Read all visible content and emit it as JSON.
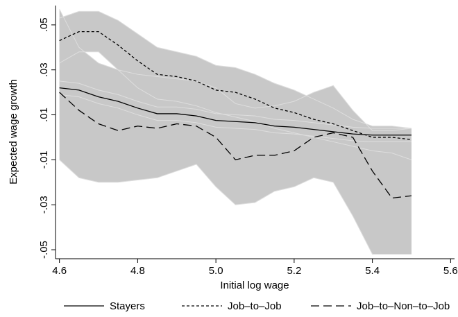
{
  "chart_data": {
    "type": "line",
    "x_label": "Initial log wage",
    "y_label": "Expected wage growth",
    "xlim": [
      4.59,
      5.61
    ],
    "ylim": [
      -0.054,
      0.0586
    ],
    "xticks": [
      4.6,
      4.8,
      {
        "value": 5,
        "label": "5.0"
      },
      5.2,
      5.4,
      5.6
    ],
    "yticks": [
      {
        "value": 0.05,
        "label": ".05"
      },
      {
        "value": 0.03,
        "label": ".03"
      },
      {
        "value": 0.01,
        "label": ".01"
      },
      {
        "value": -0.01,
        "label": "-.01"
      },
      {
        "value": -0.03,
        "label": "-.03"
      },
      {
        "value": -0.05,
        "label": "-.05"
      }
    ],
    "band_color": "#c8c8c8",
    "x": [
      4.6,
      4.65,
      4.7,
      4.75,
      4.8,
      4.85,
      4.9,
      4.95,
      5.0,
      5.05,
      5.1,
      5.15,
      5.2,
      5.25,
      5.3,
      5.35,
      5.4,
      5.45,
      5.5
    ],
    "series": [
      {
        "name": "Stayers",
        "color": "#000000",
        "dash": "solid",
        "values": [
          0.022,
          0.021,
          0.018,
          0.016,
          0.013,
          0.0105,
          0.0105,
          0.0095,
          0.0075,
          0.007,
          0.0065,
          0.005,
          0.0045,
          0.0035,
          0.0025,
          0.0015,
          0.001,
          0.001,
          0.001
        ],
        "upper": [
          0.025,
          0.024,
          0.021,
          0.019,
          0.016,
          0.0135,
          0.0135,
          0.0125,
          0.0105,
          0.01,
          0.0095,
          0.008,
          0.0075,
          0.0065,
          0.0055,
          0.0045,
          0.004,
          0.004,
          0.004
        ],
        "lower": [
          0.019,
          0.018,
          0.015,
          0.013,
          0.01,
          0.0075,
          0.0075,
          0.0065,
          0.0045,
          0.004,
          0.0035,
          0.002,
          0.0015,
          0.0005,
          -0.0005,
          -0.0015,
          -0.002,
          -0.002,
          -0.002
        ]
      },
      {
        "name": "Job–to–Job",
        "color": "#000000",
        "dash": "short",
        "values": [
          0.043,
          0.047,
          0.047,
          0.041,
          0.034,
          0.028,
          0.027,
          0.025,
          0.021,
          0.02,
          0.017,
          0.013,
          0.011,
          0.008,
          0.006,
          0.003,
          0.0,
          0.0,
          -0.001
        ],
        "upper": [
          0.053,
          0.056,
          0.056,
          0.052,
          0.046,
          0.04,
          0.038,
          0.036,
          0.032,
          0.031,
          0.028,
          0.024,
          0.021,
          0.017,
          0.013,
          0.008,
          0.005,
          0.005,
          0.004
        ],
        "lower": [
          0.033,
          0.038,
          0.038,
          0.03,
          0.022,
          0.017,
          0.016,
          0.014,
          0.011,
          0.009,
          0.007,
          0.004,
          0.002,
          0.0,
          -0.002,
          -0.004,
          -0.006,
          -0.007,
          -0.01
        ]
      },
      {
        "name": "Job–to–Non–to–Job",
        "color": "#000000",
        "dash": "long",
        "values": [
          0.02,
          0.012,
          0.006,
          0.003,
          0.005,
          0.004,
          0.006,
          0.005,
          0.0,
          -0.01,
          -0.008,
          -0.008,
          -0.006,
          0.0,
          0.002,
          0.0,
          -0.015,
          -0.027,
          -0.026
        ],
        "upper": [
          0.057,
          0.04,
          0.033,
          0.03,
          0.028,
          0.027,
          0.026,
          0.025,
          0.022,
          0.015,
          0.013,
          0.014,
          0.016,
          0.02,
          0.023,
          0.012,
          0.003,
          0.003,
          0.004
        ],
        "lower": [
          -0.01,
          -0.018,
          -0.02,
          -0.02,
          -0.019,
          -0.018,
          -0.015,
          -0.012,
          -0.022,
          -0.03,
          -0.029,
          -0.024,
          -0.022,
          -0.018,
          -0.02,
          -0.035,
          -0.052,
          -0.052,
          -0.052
        ]
      }
    ]
  }
}
